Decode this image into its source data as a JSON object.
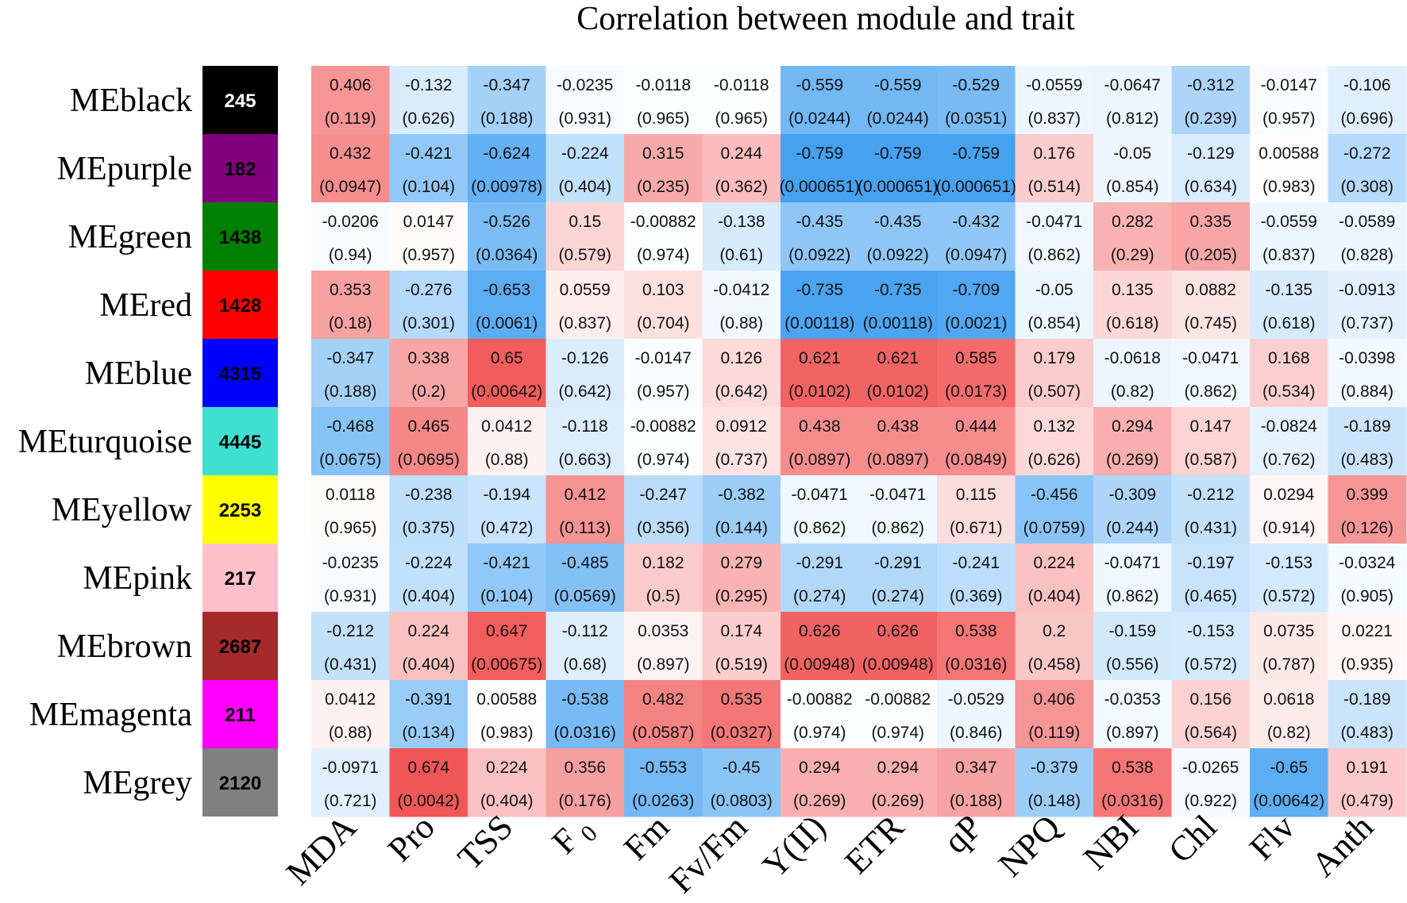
{
  "chart_data": {
    "type": "heatmap",
    "title": "Correlation between module and trait",
    "rows": [
      {
        "label": "MEblack",
        "count": "245",
        "color": "#000000",
        "count_color": "#ffffff"
      },
      {
        "label": "MEpurple",
        "count": "182",
        "color": "#800080",
        "count_color": "#000000"
      },
      {
        "label": "MEgreen",
        "count": "1438",
        "color": "#008000",
        "count_color": "#000000"
      },
      {
        "label": "MEred",
        "count": "1428",
        "color": "#ff0000",
        "count_color": "#000000"
      },
      {
        "label": "MEblue",
        "count": "4315",
        "color": "#0000ff",
        "count_color": "#000000"
      },
      {
        "label": "MEturquoise",
        "count": "4445",
        "color": "#40e0d0",
        "count_color": "#000000"
      },
      {
        "label": "MEyellow",
        "count": "2253",
        "color": "#ffff00",
        "count_color": "#000000"
      },
      {
        "label": "MEpink",
        "count": "217",
        "color": "#ffc0cb",
        "count_color": "#000000"
      },
      {
        "label": "MEbrown",
        "count": "2687",
        "color": "#a52a2a",
        "count_color": "#000000"
      },
      {
        "label": "MEmagenta",
        "count": "211",
        "color": "#ff00ff",
        "count_color": "#000000"
      },
      {
        "label": "MEgrey",
        "count": "2120",
        "color": "#808080",
        "count_color": "#000000"
      }
    ],
    "columns": [
      "MDA",
      "Pro",
      "TSS",
      "F0",
      "Fm",
      "Fv/Fm",
      "Y(II)",
      "ETR",
      "qP",
      "NPQ",
      "NBI",
      "Chl",
      "Flv",
      "Anth"
    ],
    "correlations": [
      [
        "0.406",
        "-0.132",
        "-0.347",
        "-0.0235",
        "-0.0118",
        "-0.0118",
        "-0.559",
        "-0.559",
        "-0.529",
        "-0.0559",
        "-0.0647",
        "-0.312",
        "-0.0147",
        "-0.106"
      ],
      [
        "0.432",
        "-0.421",
        "-0.624",
        "-0.224",
        "0.315",
        "0.244",
        "-0.759",
        "-0.759",
        "-0.759",
        "0.176",
        "-0.05",
        "-0.129",
        "0.00588",
        "-0.272"
      ],
      [
        "-0.0206",
        "0.0147",
        "-0.526",
        "0.15",
        "-0.00882",
        "-0.138",
        "-0.435",
        "-0.435",
        "-0.432",
        "-0.0471",
        "0.282",
        "0.335",
        "-0.0559",
        "-0.0589"
      ],
      [
        "0.353",
        "-0.276",
        "-0.653",
        "0.0559",
        "0.103",
        "-0.0412",
        "-0.735",
        "-0.735",
        "-0.709",
        "-0.05",
        "0.135",
        "0.0882",
        "-0.135",
        "-0.0913"
      ],
      [
        "-0.347",
        "0.338",
        "0.65",
        "-0.126",
        "-0.0147",
        "0.126",
        "0.621",
        "0.621",
        "0.585",
        "0.179",
        "-0.0618",
        "-0.0471",
        "0.168",
        "-0.0398"
      ],
      [
        "-0.468",
        "0.465",
        "0.0412",
        "-0.118",
        "-0.00882",
        "0.0912",
        "0.438",
        "0.438",
        "0.444",
        "0.132",
        "0.294",
        "0.147",
        "-0.0824",
        "-0.189"
      ],
      [
        "0.0118",
        "-0.238",
        "-0.194",
        "0.412",
        "-0.247",
        "-0.382",
        "-0.0471",
        "-0.0471",
        "0.115",
        "-0.456",
        "-0.309",
        "-0.212",
        "0.0294",
        "0.399"
      ],
      [
        "-0.0235",
        "-0.224",
        "-0.421",
        "-0.485",
        "0.182",
        "0.279",
        "-0.291",
        "-0.291",
        "-0.241",
        "0.224",
        "-0.0471",
        "-0.197",
        "-0.153",
        "-0.0324"
      ],
      [
        "-0.212",
        "0.224",
        "0.647",
        "-0.112",
        "0.0353",
        "0.174",
        "0.626",
        "0.626",
        "0.538",
        "0.2",
        "-0.159",
        "-0.153",
        "0.0735",
        "0.0221"
      ],
      [
        "0.0412",
        "-0.391",
        "0.00588",
        "-0.538",
        "0.482",
        "0.535",
        "-0.00882",
        "-0.00882",
        "-0.0529",
        "0.406",
        "-0.0353",
        "0.156",
        "0.0618",
        "-0.189"
      ],
      [
        "-0.0971",
        "0.674",
        "0.224",
        "0.356",
        "-0.553",
        "-0.45",
        "0.294",
        "0.294",
        "0.347",
        "-0.379",
        "0.538",
        "-0.0265",
        "-0.65",
        "0.191"
      ]
    ],
    "pvalues": [
      [
        "(0.119)",
        "(0.626)",
        "(0.188)",
        "(0.931)",
        "(0.965)",
        "(0.965)",
        "(0.0244)",
        "(0.0244)",
        "(0.0351)",
        "(0.837)",
        "(0.812)",
        "(0.239)",
        "(0.957)",
        "(0.696)"
      ],
      [
        "(0.0947)",
        "(0.104)",
        "(0.00978)",
        "(0.404)",
        "(0.235)",
        "(0.362)",
        "(0.000651)",
        "(0.000651)",
        "(0.000651)",
        "(0.514)",
        "(0.854)",
        "(0.634)",
        "(0.983)",
        "(0.308)"
      ],
      [
        "(0.94)",
        "(0.957)",
        "(0.0364)",
        "(0.579)",
        "(0.974)",
        "(0.61)",
        "(0.0922)",
        "(0.0922)",
        "(0.0947)",
        "(0.862)",
        "(0.29)",
        "(0.205)",
        "(0.837)",
        "(0.828)"
      ],
      [
        "(0.18)",
        "(0.301)",
        "(0.0061)",
        "(0.837)",
        "(0.704)",
        "(0.88)",
        "(0.00118)",
        "(0.00118)",
        "(0.0021)",
        "(0.854)",
        "(0.618)",
        "(0.745)",
        "(0.618)",
        "(0.737)"
      ],
      [
        "(0.188)",
        "(0.2)",
        "(0.00642)",
        "(0.642)",
        "(0.957)",
        "(0.642)",
        "(0.0102)",
        "(0.0102)",
        "(0.0173)",
        "(0.507)",
        "(0.82)",
        "(0.862)",
        "(0.534)",
        "(0.884)"
      ],
      [
        "(0.0675)",
        "(0.0695)",
        "(0.88)",
        "(0.663)",
        "(0.974)",
        "(0.737)",
        "(0.0897)",
        "(0.0897)",
        "(0.0849)",
        "(0.626)",
        "(0.269)",
        "(0.587)",
        "(0.762)",
        "(0.483)"
      ],
      [
        "(0.965)",
        "(0.375)",
        "(0.472)",
        "(0.113)",
        "(0.356)",
        "(0.144)",
        "(0.862)",
        "(0.862)",
        "(0.671)",
        "(0.0759)",
        "(0.244)",
        "(0.431)",
        "(0.914)",
        "(0.126)"
      ],
      [
        "(0.931)",
        "(0.404)",
        "(0.104)",
        "(0.0569)",
        "(0.5)",
        "(0.295)",
        "(0.274)",
        "(0.274)",
        "(0.369)",
        "(0.404)",
        "(0.862)",
        "(0.465)",
        "(0.572)",
        "(0.905)"
      ],
      [
        "(0.431)",
        "(0.404)",
        "(0.00675)",
        "(0.68)",
        "(0.897)",
        "(0.519)",
        "(0.00948)",
        "(0.00948)",
        "(0.0316)",
        "(0.458)",
        "(0.556)",
        "(0.572)",
        "(0.787)",
        "(0.935)"
      ],
      [
        "(0.88)",
        "(0.134)",
        "(0.983)",
        "(0.0316)",
        "(0.0587)",
        "(0.0327)",
        "(0.974)",
        "(0.974)",
        "(0.846)",
        "(0.119)",
        "(0.897)",
        "(0.564)",
        "(0.82)",
        "(0.483)"
      ],
      [
        "(0.721)",
        "(0.0042)",
        "(0.404)",
        "(0.176)",
        "(0.0263)",
        "(0.0803)",
        "(0.269)",
        "(0.269)",
        "(0.188)",
        "(0.148)",
        "(0.0316)",
        "(0.922)",
        "(0.00642)",
        "(0.479)"
      ]
    ],
    "color_scale": {
      "negative": "#3d9df0",
      "zero": "#ffffff",
      "positive": "#ef3b3b",
      "range": [
        -0.8,
        0.8
      ]
    }
  }
}
